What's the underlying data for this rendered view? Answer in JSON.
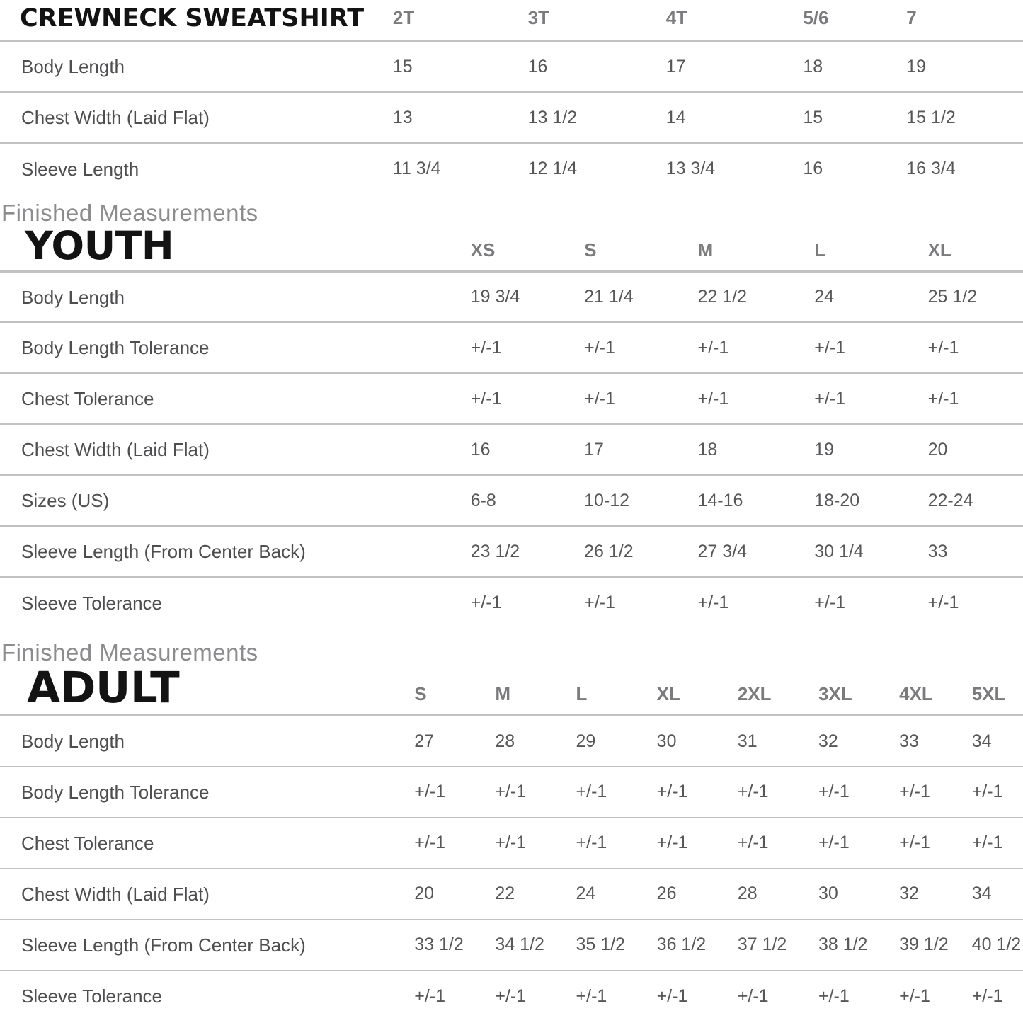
{
  "colors": {
    "title": "#131313",
    "column_header": "#7b7b7e",
    "row_label": "#4e4e50",
    "value": "#57575a",
    "divider": "#c1c1c3",
    "eyebrow": "#8c8c8e",
    "background": "#ffffff"
  },
  "sections": [
    {
      "id": "toddler",
      "title": "CREWNECK SWEATSHIRT",
      "columns": [
        "2T",
        "3T",
        "4T",
        "5/6",
        "7"
      ],
      "rows": [
        {
          "label": "Body Length",
          "values": [
            "15",
            "16",
            "17",
            "18",
            "19"
          ]
        },
        {
          "label": "Chest Width (Laid Flat)",
          "values": [
            "13",
            "13 1/2",
            "14",
            "15",
            "15 1/2"
          ]
        },
        {
          "label": "Sleeve Length",
          "values": [
            "11 3/4",
            "12 1/4",
            "13 3/4",
            "16",
            "16 3/4"
          ]
        }
      ]
    },
    {
      "id": "youth",
      "eyebrow": "Finished Measurements",
      "title": "YOUTH",
      "columns": [
        "XS",
        "S",
        "M",
        "L",
        "XL"
      ],
      "rows": [
        {
          "label": "Body Length",
          "values": [
            "19 3/4",
            "21 1/4",
            "22 1/2",
            "24",
            "25 1/2"
          ]
        },
        {
          "label": "Body Length Tolerance",
          "values": [
            "+/-1",
            "+/-1",
            "+/-1",
            "+/-1",
            "+/-1"
          ]
        },
        {
          "label": "Chest Tolerance",
          "values": [
            "+/-1",
            "+/-1",
            "+/-1",
            "+/-1",
            "+/-1"
          ]
        },
        {
          "label": "Chest Width (Laid Flat)",
          "values": [
            "16",
            "17",
            "18",
            "19",
            "20"
          ]
        },
        {
          "label": "Sizes (US)",
          "values": [
            "6-8",
            "10-12",
            "14-16",
            "18-20",
            "22-24"
          ]
        },
        {
          "label": "Sleeve Length (From Center Back)",
          "values": [
            "23 1/2",
            "26 1/2",
            "27 3/4",
            "30 1/4",
            "33"
          ]
        },
        {
          "label": "Sleeve Tolerance",
          "values": [
            "+/-1",
            "+/-1",
            "+/-1",
            "+/-1",
            "+/-1"
          ]
        }
      ]
    },
    {
      "id": "adult",
      "eyebrow": "Finished Measurements",
      "title": "ADULT",
      "columns": [
        "S",
        "M",
        "L",
        "XL",
        "2XL",
        "3XL",
        "4XL",
        "5XL"
      ],
      "rows": [
        {
          "label": "Body Length",
          "values": [
            "27",
            "28",
            "29",
            "30",
            "31",
            "32",
            "33",
            "34"
          ]
        },
        {
          "label": "Body Length Tolerance",
          "values": [
            "+/-1",
            "+/-1",
            "+/-1",
            "+/-1",
            "+/-1",
            "+/-1",
            "+/-1",
            "+/-1"
          ]
        },
        {
          "label": "Chest Tolerance",
          "values": [
            "+/-1",
            "+/-1",
            "+/-1",
            "+/-1",
            "+/-1",
            "+/-1",
            "+/-1",
            "+/-1"
          ]
        },
        {
          "label": "Chest Width (Laid Flat)",
          "values": [
            "20",
            "22",
            "24",
            "26",
            "28",
            "30",
            "32",
            "34"
          ]
        },
        {
          "label": "Sleeve Length (From Center Back)",
          "values": [
            "33 1/2",
            "34 1/2",
            "35 1/2",
            "36 1/2",
            "37 1/2",
            "38 1/2",
            "39 1/2",
            "40 1/2"
          ]
        },
        {
          "label": "Sleeve Tolerance",
          "values": [
            "+/-1",
            "+/-1",
            "+/-1",
            "+/-1",
            "+/-1",
            "+/-1",
            "+/-1",
            "+/-1"
          ]
        }
      ]
    }
  ]
}
